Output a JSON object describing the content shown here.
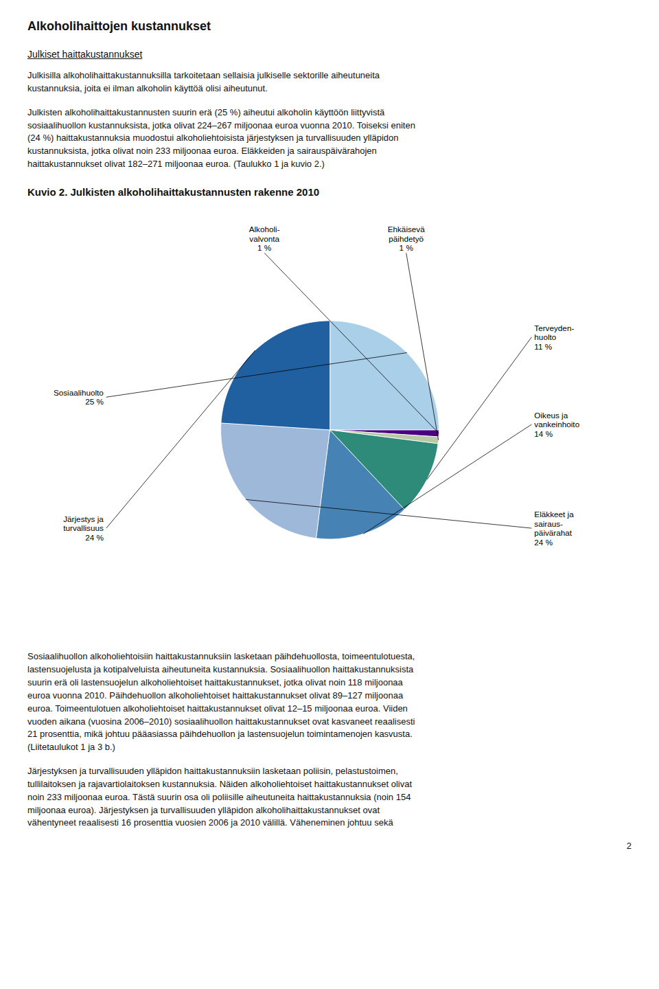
{
  "title_main": "Alkoholihaittojen kustannukset",
  "section_heading": "Julkiset haittakustannukset",
  "paragraphs_before": [
    "Julkisilla alkoholihaittakustannuksilla tarkoitetaan sellaisia julkiselle sektorille aiheutuneita\nkustannuksia, joita ei ilman alkoholin käyttöä olisi aiheutunut.",
    "Julkisten alkoholihaittakustannusten suurin erä (25 %) aiheutui alkoholin käyttöön liittyvistä\nsosiaalihuollon kustannuksista, jotka olivat 224–267 miljoonaa euroa vuonna 2010. Toiseksi eniten\n(24 %) haittakustannuksia muodostui alkoholiehtoisista järjestyksen ja turvallisuuden ylläpidon\nkustannuksista, jotka olivat noin 233 miljoonaa euroa. Eläkkeiden ja sairauspäivärahojen\nhaittakustannukset olivat 182–271 miljoonaa euroa. (Taulukko 1 ja kuvio 2.)"
  ],
  "chart_data": {
    "type": "pie",
    "title": "Kuvio 2. Julkisten alkoholihaittakustannusten rakenne 2010",
    "categories": [
      "Sosiaalihuolto\n25 %",
      "Alkoholi-\nvalvonta\n1 %",
      "Ehkäisevä\npäihdetyö\n1 %",
      "Terveyden-\nhuolto\n11 %",
      "Oikeus ja\nvankeinhoito\n14 %",
      "Eläkkeet ja\nsairaus-\npäivärahat\n24 %",
      "Järjestys ja\nturvallisuus\n24 %"
    ],
    "values": [
      25,
      1,
      1,
      11,
      14,
      24,
      24
    ],
    "colors": [
      "#aacfe8",
      "#4b0082",
      "#b8c9a3",
      "#2e8b7a",
      "#4682b4",
      "#9eb8d9",
      "#2060a0"
    ]
  },
  "paragraphs_after": [
    "Sosiaalihuollon alkoholiehtoisiin haittakustannuksiin lasketaan päihdehuollosta, toimeentulotuesta,\nlastensuojelusta ja kotipalveluista aiheutuneita kustannuksia. Sosiaalihuollon haittakustannuksista\nsuurin erä oli lastensuojelun alkoholiehtoiset haittakustannukset, jotka olivat noin 118 miljoonaa\neuroa vuonna 2010. Päihdehuollon alkoholiehtoiset haittakustannukset olivat 89–127 miljoonaa\neuroa. Toimeentulotuen alkoholiehtoiset haittakustannukset olivat 12–15 miljoonaa euroa. Viiden\nvuoden aikana (vuosina 2006–2010) sosiaalihuollon haittakustannukset ovat kasvaneet reaalisesti\n21 prosenttia, mikä johtuu pääasiassa päihdehuollon ja lastensuojelun toimintamenojen kasvusta.\n(Liitetaulukot 1 ja 3 b.)",
    "Järjestyksen ja turvallisuuden ylläpidon haittakustannuksiin lasketaan poliisin, pelastustoimen,\ntullilaitoksen ja rajavartiolaitoksen kustannuksia. Näiden alkoholiehtoiset haittakustannukset olivat\nnoin 233 miljoonaa euroa. Tästä suurin osa oli poliisille aiheutuneita haittakustannuksia (noin 154\nmiljoonaa euroa). Järjestyksen ja turvallisuuden ylläpidon alkoholihaittakustannukset ovat\nvähentyneet reaalisesti 16 prosenttia vuosien 2006 ja 2010 välillä. Väheneminen johtuu sekä"
  ],
  "page_number": "2"
}
